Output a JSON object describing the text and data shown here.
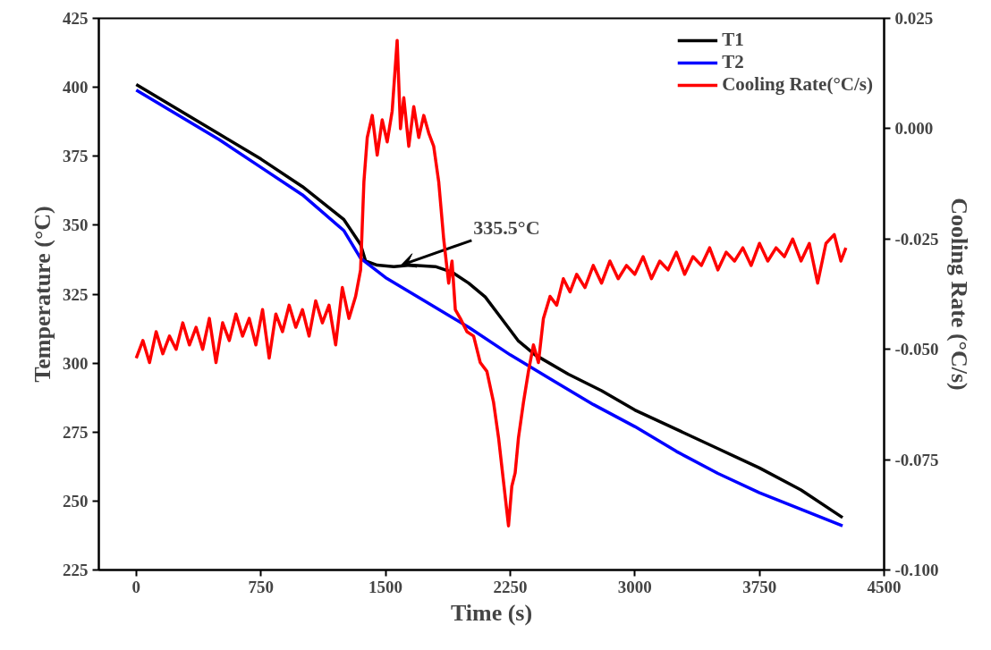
{
  "chart_data": {
    "type": "line",
    "xlabel": "Time (s)",
    "ylabel": "Temperature (°C)",
    "y2label": "Cooling Rate (°C/s)",
    "xlim": [
      -225,
      4500
    ],
    "xticks": [
      0,
      750,
      1500,
      2250,
      3000,
      3750,
      4500
    ],
    "ylim": [
      225,
      425
    ],
    "yticks": [
      225,
      250,
      275,
      300,
      325,
      350,
      375,
      400,
      425
    ],
    "y2lim": [
      -0.1,
      0.025
    ],
    "y2ticks": [
      {
        "value": -0.1,
        "label": "-0.100"
      },
      {
        "value": -0.075,
        "label": "-0.075"
      },
      {
        "value": -0.05,
        "label": "-0.050"
      },
      {
        "value": -0.025,
        "label": "-0.025"
      },
      {
        "value": 0,
        "label": "0.000"
      },
      {
        "value": 0.025,
        "label": "0.025"
      }
    ],
    "grid": false,
    "legend": "top right",
    "line_style": "solid",
    "marker": "none",
    "annotations": [
      {
        "text": "335.5°C",
        "x": 1593,
        "y": 335.5
      }
    ],
    "series": [
      {
        "name": "T1",
        "color": "#000000",
        "x": [
          0,
          250,
          500,
          750,
          1000,
          1250,
          1350,
          1380,
          1450,
          1550,
          1650,
          1800,
          1900,
          2000,
          2100,
          2200,
          2300,
          2400,
          2600,
          2800,
          3000,
          3250,
          3500,
          3750,
          4000,
          4250
        ],
        "values": [
          401,
          392,
          383,
          374,
          364,
          352,
          343,
          337,
          335.5,
          335,
          335.5,
          335,
          333,
          329,
          324,
          316,
          308,
          303,
          296,
          290,
          283,
          276,
          269,
          262,
          254,
          244
        ]
      },
      {
        "name": "T2",
        "color": "#0000ff",
        "x": [
          0,
          250,
          500,
          750,
          1000,
          1250,
          1350,
          1500,
          1750,
          2000,
          2250,
          2500,
          2750,
          3000,
          3250,
          3500,
          3750,
          4000,
          4250
        ],
        "values": [
          399,
          390,
          381,
          371,
          361,
          348,
          338,
          331,
          322,
          313,
          303,
          294,
          285,
          277,
          268,
          260,
          253,
          247,
          241
        ]
      },
      {
        "name": "Cooling Rate(°C/s)",
        "color": "#ff0000",
        "axis": "y2",
        "x": [
          0,
          40,
          80,
          120,
          160,
          200,
          240,
          280,
          320,
          360,
          400,
          440,
          480,
          520,
          560,
          600,
          640,
          680,
          720,
          760,
          800,
          840,
          880,
          920,
          960,
          1000,
          1040,
          1080,
          1120,
          1160,
          1200,
          1240,
          1280,
          1320,
          1350,
          1370,
          1390,
          1420,
          1450,
          1480,
          1510,
          1540,
          1570,
          1590,
          1610,
          1640,
          1670,
          1700,
          1730,
          1760,
          1790,
          1820,
          1850,
          1880,
          1900,
          1920,
          1950,
          1990,
          2030,
          2070,
          2110,
          2150,
          2180,
          2210,
          2240,
          2260,
          2280,
          2300,
          2330,
          2360,
          2390,
          2420,
          2450,
          2490,
          2530,
          2570,
          2610,
          2650,
          2700,
          2750,
          2800,
          2850,
          2900,
          2950,
          3000,
          3050,
          3100,
          3150,
          3200,
          3250,
          3300,
          3350,
          3400,
          3450,
          3500,
          3550,
          3600,
          3650,
          3700,
          3750,
          3800,
          3850,
          3900,
          3950,
          4000,
          4050,
          4100,
          4150,
          4200,
          4240,
          4270
        ],
        "values": [
          -0.052,
          -0.048,
          -0.053,
          -0.046,
          -0.051,
          -0.047,
          -0.05,
          -0.044,
          -0.049,
          -0.045,
          -0.05,
          -0.043,
          -0.053,
          -0.044,
          -0.048,
          -0.042,
          -0.047,
          -0.043,
          -0.049,
          -0.041,
          -0.052,
          -0.042,
          -0.046,
          -0.04,
          -0.045,
          -0.041,
          -0.047,
          -0.039,
          -0.044,
          -0.04,
          -0.049,
          -0.036,
          -0.043,
          -0.038,
          -0.032,
          -0.012,
          -0.002,
          0.003,
          -0.006,
          0.002,
          -0.003,
          0.004,
          0.02,
          0.0,
          0.007,
          -0.004,
          0.005,
          -0.002,
          0.003,
          -0.001,
          -0.004,
          -0.012,
          -0.025,
          -0.035,
          -0.03,
          -0.041,
          -0.043,
          -0.046,
          -0.047,
          -0.053,
          -0.055,
          -0.062,
          -0.07,
          -0.08,
          -0.09,
          -0.081,
          -0.078,
          -0.07,
          -0.062,
          -0.055,
          -0.049,
          -0.053,
          -0.043,
          -0.038,
          -0.04,
          -0.034,
          -0.037,
          -0.033,
          -0.036,
          -0.031,
          -0.035,
          -0.03,
          -0.034,
          -0.031,
          -0.033,
          -0.029,
          -0.034,
          -0.03,
          -0.032,
          -0.028,
          -0.033,
          -0.029,
          -0.031,
          -0.027,
          -0.032,
          -0.028,
          -0.03,
          -0.027,
          -0.031,
          -0.026,
          -0.03,
          -0.027,
          -0.029,
          -0.025,
          -0.03,
          -0.026,
          -0.035,
          -0.026,
          -0.024,
          -0.03,
          -0.027
        ]
      }
    ]
  }
}
